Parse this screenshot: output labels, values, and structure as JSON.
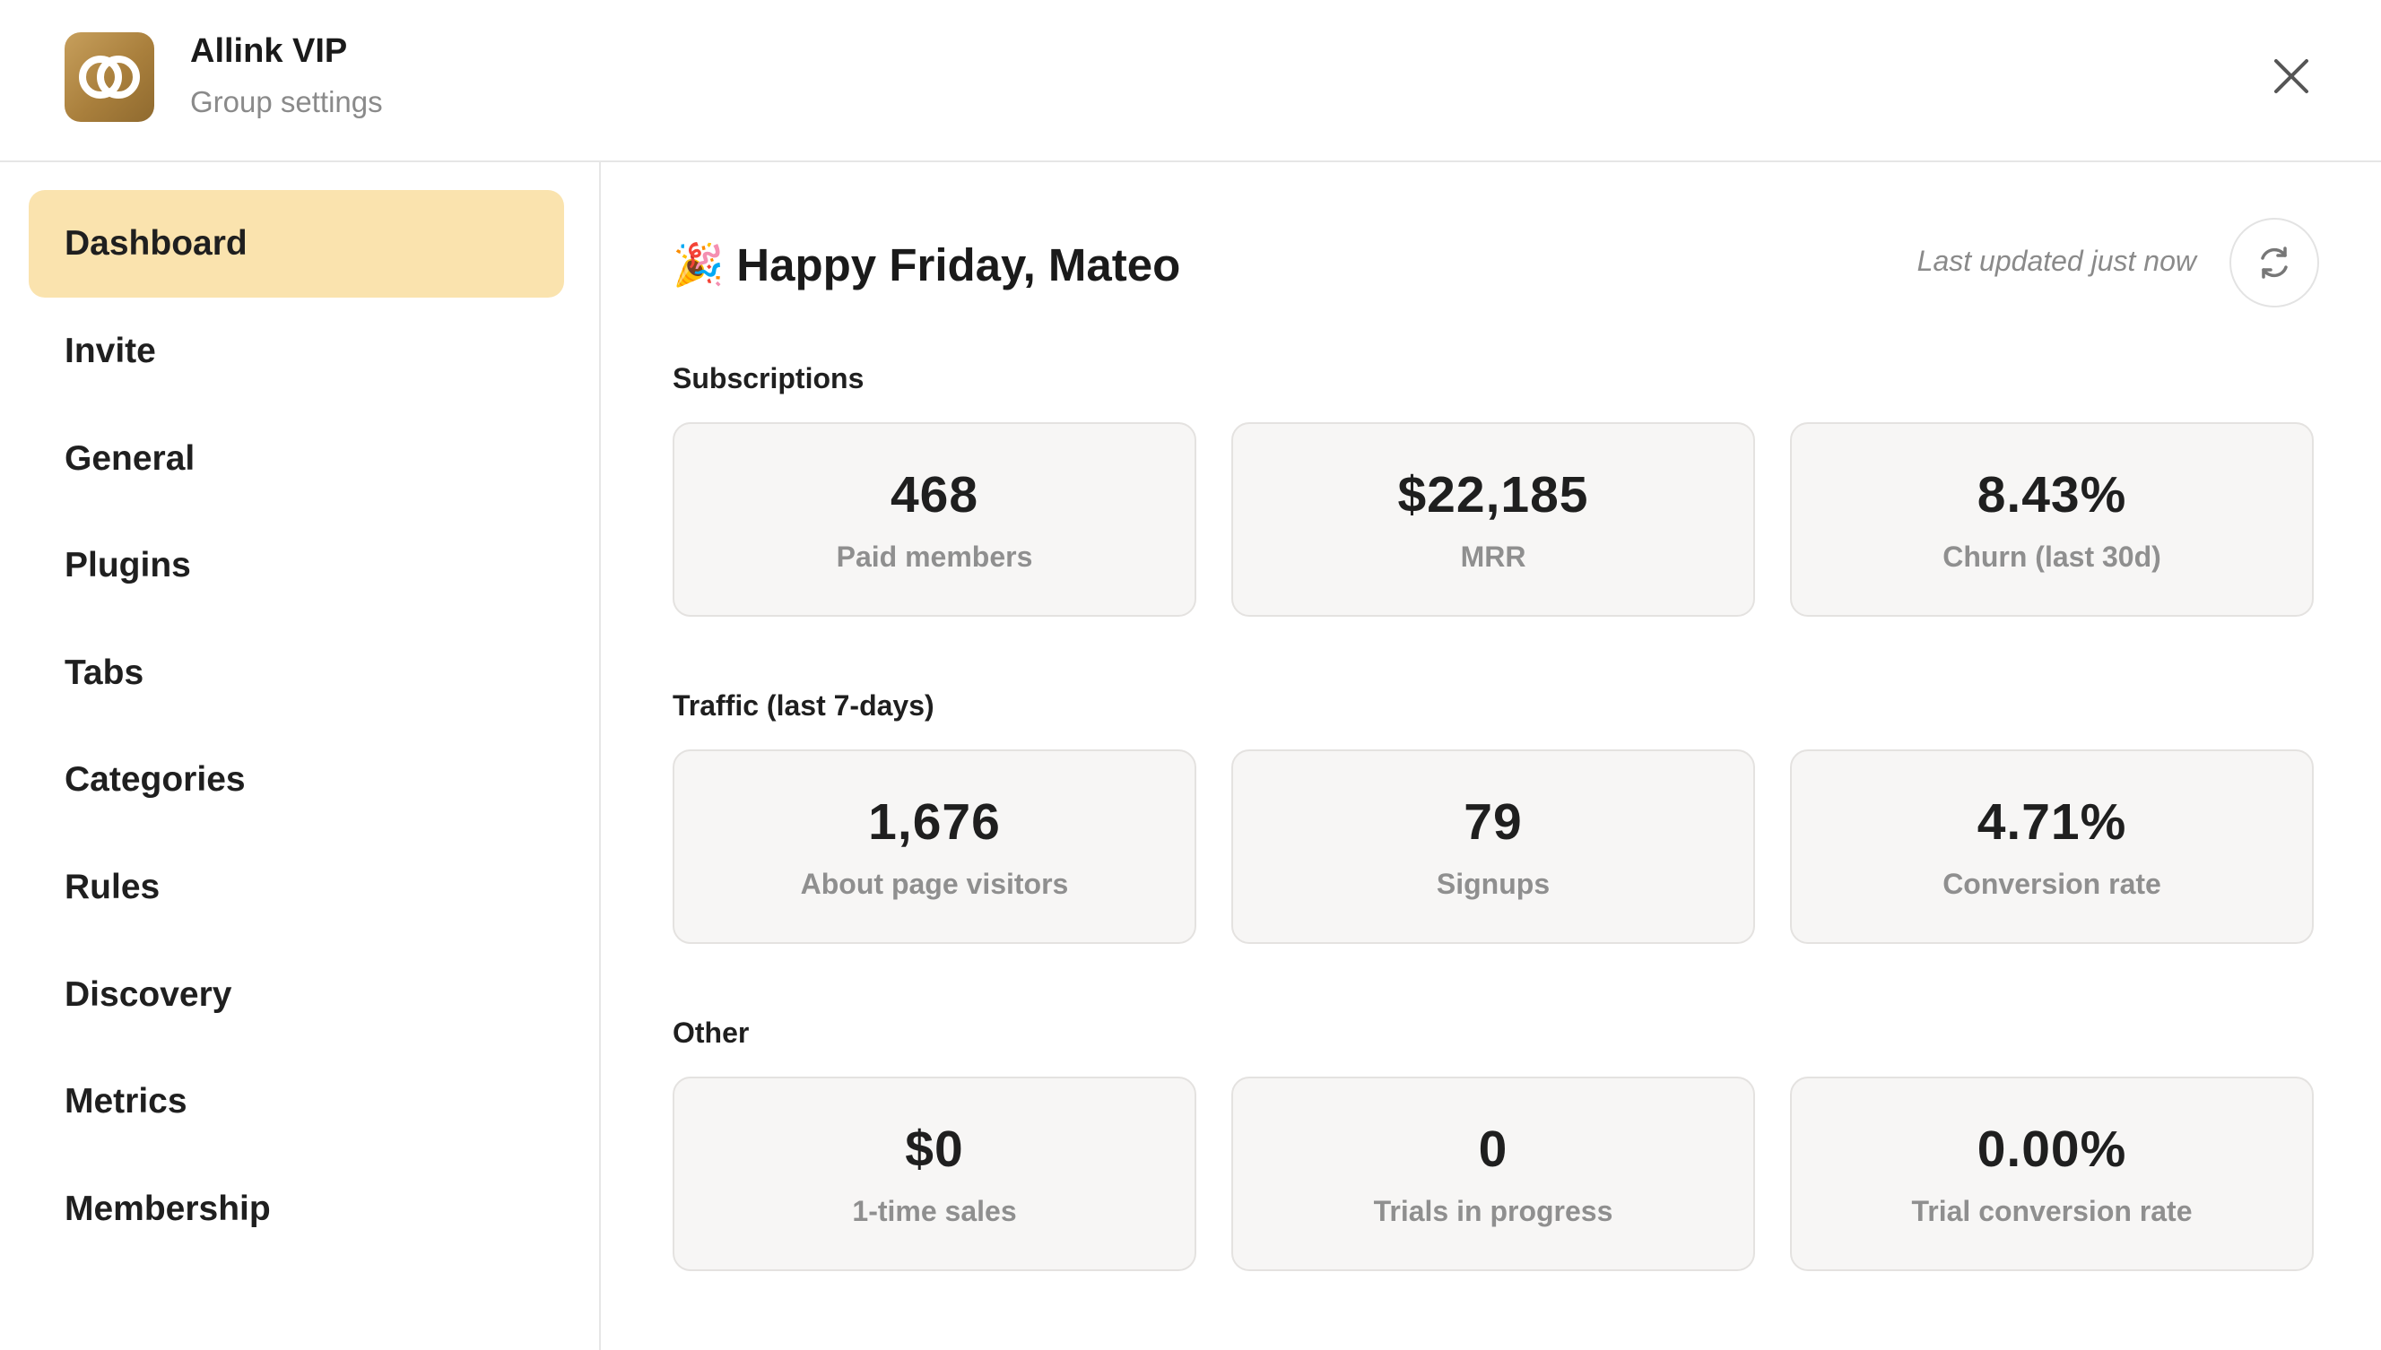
{
  "header": {
    "title": "Allink VIP",
    "subtitle": "Group settings",
    "logo_icon": "allink-logo",
    "close_icon": "close-icon",
    "logo_color": "#b08745"
  },
  "sidebar": {
    "items": [
      {
        "label": "Dashboard",
        "active": true
      },
      {
        "label": "Invite"
      },
      {
        "label": "General"
      },
      {
        "label": "Plugins"
      },
      {
        "label": "Tabs"
      },
      {
        "label": "Categories"
      },
      {
        "label": "Rules"
      },
      {
        "label": "Discovery"
      },
      {
        "label": "Metrics"
      },
      {
        "label": "Membership"
      }
    ],
    "active_color": "#fae3ae"
  },
  "main": {
    "greeting_emoji": "🎉",
    "greeting": "Happy Friday, Mateo",
    "last_updated": "Last updated just now",
    "refresh_icon": "refresh-icon",
    "sections": [
      {
        "title": "Subscriptions",
        "cards": [
          {
            "value": "468",
            "label": "Paid members"
          },
          {
            "value": "$22,185",
            "label": "MRR"
          },
          {
            "value": "8.43%",
            "label": "Churn (last 30d)"
          }
        ]
      },
      {
        "title": "Traffic (last 7-days)",
        "cards": [
          {
            "value": "1,676",
            "label": "About page visitors"
          },
          {
            "value": "79",
            "label": "Signups"
          },
          {
            "value": "4.71%",
            "label": "Conversion rate"
          }
        ]
      },
      {
        "title": "Other",
        "cards": [
          {
            "value": "$0",
            "label": "1-time sales"
          },
          {
            "value": "0",
            "label": "Trials in progress"
          },
          {
            "value": "0.00%",
            "label": "Trial conversion rate"
          }
        ]
      }
    ]
  }
}
